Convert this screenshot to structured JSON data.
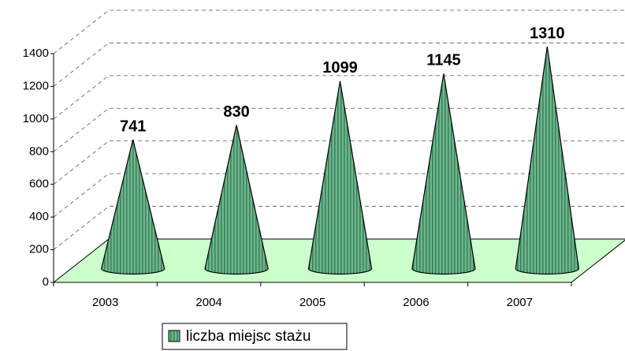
{
  "chart_data": {
    "type": "cone",
    "categories": [
      "2003",
      "2004",
      "2005",
      "2006",
      "2007"
    ],
    "series": [
      {
        "name": "liczba miejsc stażu",
        "color": "#5fae82",
        "values": [
          741,
          830,
          1099,
          1145,
          1310
        ]
      }
    ],
    "ylim": [
      0,
      1400
    ],
    "yticks": [
      0,
      200,
      400,
      600,
      800,
      1000,
      1200,
      1400
    ],
    "grid": true,
    "floor_color": "#ccffcc",
    "legend": "bottom"
  }
}
